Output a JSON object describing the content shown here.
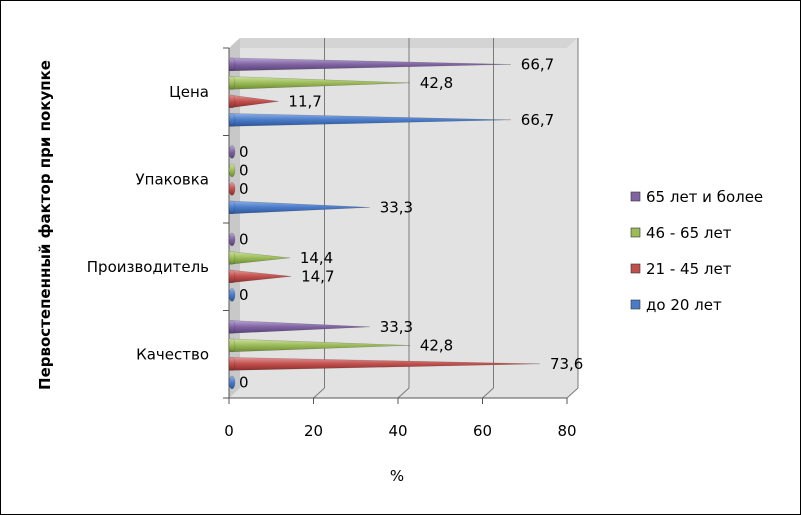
{
  "chart_data": {
    "type": "bar",
    "orientation": "horizontal",
    "style": "3d-cone",
    "categories": [
      "Качество",
      "Производитель",
      "Упаковка",
      "Цена"
    ],
    "series": [
      {
        "name": "до 20 лет",
        "color": "#4a7bc8",
        "values": [
          0,
          0,
          33.3,
          66.7
        ],
        "labels": [
          "0",
          "0",
          "33,3",
          "66,7"
        ]
      },
      {
        "name": "21 - 45 лет",
        "color": "#c0504d",
        "values": [
          73.6,
          14.7,
          0,
          11.7
        ],
        "labels": [
          "73,6",
          "14,7",
          "0",
          "11,7"
        ]
      },
      {
        "name": "46 - 65 лет",
        "color": "#9bbb59",
        "values": [
          42.8,
          14.4,
          0,
          42.8
        ],
        "labels": [
          "42,8",
          "14,4",
          "0",
          "42,8"
        ]
      },
      {
        "name": "65 лет и более",
        "color": "#8064a2",
        "values": [
          33.3,
          0,
          0,
          66.7
        ],
        "labels": [
          "33,3",
          "0",
          "0",
          "66,7"
        ]
      }
    ],
    "xlabel": "%",
    "ylabel": "Первостепенный фактор при покупке",
    "xlim": [
      0,
      80
    ],
    "xticks": [
      "0",
      "20",
      "40",
      "60",
      "80"
    ],
    "grid": true,
    "legend_position": "right",
    "legend_order": [
      "65 лет и более",
      "46 - 65 лет",
      "21 - 45 лет",
      "до 20 лет"
    ]
  }
}
